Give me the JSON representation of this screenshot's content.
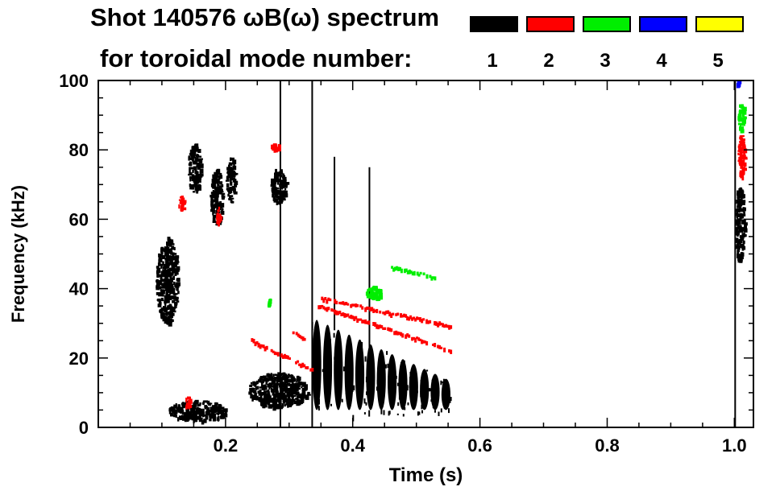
{
  "chart_data": {
    "type": "heatmap",
    "title_line1": "Shot 140576 ωB(ω) spectrum",
    "title_line2": "for toroidal mode number:",
    "xlabel": "Time (s)",
    "ylabel": "Frequency (kHz)",
    "xlim": [
      0.0,
      1.03
    ],
    "ylim": [
      0,
      100
    ],
    "x_ticks": [
      {
        "value": 0.2,
        "label": "0.2"
      },
      {
        "value": 0.4,
        "label": "0.4"
      },
      {
        "value": 0.6,
        "label": "0.6"
      },
      {
        "value": 0.8,
        "label": "0.8"
      },
      {
        "value": 1.0,
        "label": "1.0"
      }
    ],
    "y_ticks": [
      {
        "value": 0,
        "label": "0"
      },
      {
        "value": 20,
        "label": "20"
      },
      {
        "value": 40,
        "label": "40"
      },
      {
        "value": 60,
        "label": "60"
      },
      {
        "value": 80,
        "label": "80"
      },
      {
        "value": 100,
        "label": "100"
      }
    ],
    "legend": [
      {
        "mode": "1",
        "color": "#000000"
      },
      {
        "mode": "2",
        "color": "#ff0000"
      },
      {
        "mode": "3",
        "color": "#00ee00"
      },
      {
        "mode": "4",
        "color": "#0000ff"
      },
      {
        "mode": "5",
        "color": "#ffff00"
      }
    ],
    "features": [
      {
        "mode": "1",
        "kind": "blob",
        "t": [
          0.09,
          0.125
        ],
        "f": [
          30,
          55
        ]
      },
      {
        "mode": "1",
        "kind": "blob",
        "t": [
          0.14,
          0.16
        ],
        "f": [
          68,
          82
        ]
      },
      {
        "mode": "1",
        "kind": "blob",
        "t": [
          0.175,
          0.195
        ],
        "f": [
          58,
          75
        ]
      },
      {
        "mode": "1",
        "kind": "blob",
        "t": [
          0.2,
          0.215
        ],
        "f": [
          65,
          78
        ]
      },
      {
        "mode": "1",
        "kind": "blob",
        "t": [
          0.27,
          0.295
        ],
        "f": [
          65,
          75
        ]
      },
      {
        "mode": "1",
        "kind": "blob",
        "t": [
          0.11,
          0.2
        ],
        "f": [
          2,
          8
        ]
      },
      {
        "mode": "1",
        "kind": "blob",
        "t": [
          0.235,
          0.33
        ],
        "f": [
          6,
          16
        ]
      },
      {
        "mode": "1",
        "kind": "line",
        "t": [
          0.335,
          0.337
        ],
        "f": [
          0,
          100
        ]
      },
      {
        "mode": "1",
        "kind": "line",
        "t": [
          0.285,
          0.287
        ],
        "f": [
          0,
          100
        ]
      },
      {
        "mode": "1",
        "kind": "line",
        "t": [
          0.37,
          0.372
        ],
        "f": [
          28,
          78
        ]
      },
      {
        "mode": "1",
        "kind": "line",
        "t": [
          0.425,
          0.427
        ],
        "f": [
          20,
          75
        ]
      },
      {
        "mode": "1",
        "kind": "blobs",
        "t": [
          0.335,
          0.555
        ],
        "f": [
          8,
          31
        ]
      },
      {
        "mode": "1",
        "kind": "blob",
        "t": [
          1.0,
          1.015
        ],
        "f": [
          48,
          70
        ]
      },
      {
        "mode": "1",
        "kind": "line",
        "t": [
          1.0,
          1.002
        ],
        "f": [
          0,
          100
        ]
      },
      {
        "mode": "2",
        "kind": "chirp",
        "t": [
          0.35,
          0.555
        ],
        "f": [
          37,
          29
        ]
      },
      {
        "mode": "2",
        "kind": "chirp",
        "t": [
          0.345,
          0.555
        ],
        "f": [
          35,
          22
        ]
      },
      {
        "mode": "2",
        "kind": "chirp",
        "t": [
          0.24,
          0.34
        ],
        "f": [
          25,
          16
        ]
      },
      {
        "mode": "2",
        "kind": "chirp",
        "t": [
          0.3,
          0.325
        ],
        "f": [
          28,
          25
        ]
      },
      {
        "mode": "2",
        "kind": "patch",
        "t": [
          0.185,
          0.19
        ],
        "f": [
          58,
          64
        ]
      },
      {
        "mode": "2",
        "kind": "patch",
        "t": [
          0.125,
          0.135
        ],
        "f": [
          63,
          67
        ]
      },
      {
        "mode": "2",
        "kind": "patch",
        "t": [
          0.27,
          0.285
        ],
        "f": [
          80,
          82
        ]
      },
      {
        "mode": "2",
        "kind": "patch",
        "t": [
          0.135,
          0.145
        ],
        "f": [
          6,
          9
        ]
      },
      {
        "mode": "2",
        "kind": "patch",
        "t": [
          1.005,
          1.015
        ],
        "f": [
          72,
          85
        ]
      },
      {
        "mode": "3",
        "kind": "chirp",
        "t": [
          0.46,
          0.53
        ],
        "f": [
          46,
          43
        ]
      },
      {
        "mode": "3",
        "kind": "patch",
        "t": [
          0.42,
          0.445
        ],
        "f": [
          37,
          41
        ]
      },
      {
        "mode": "3",
        "kind": "patch",
        "t": [
          1.005,
          1.015
        ],
        "f": [
          86,
          94
        ]
      },
      {
        "mode": "3",
        "kind": "patch",
        "t": [
          0.265,
          0.27
        ],
        "f": [
          35,
          38
        ]
      },
      {
        "mode": "4",
        "kind": "patch",
        "t": [
          1.003,
          1.007
        ],
        "f": [
          98,
          100
        ]
      }
    ]
  }
}
